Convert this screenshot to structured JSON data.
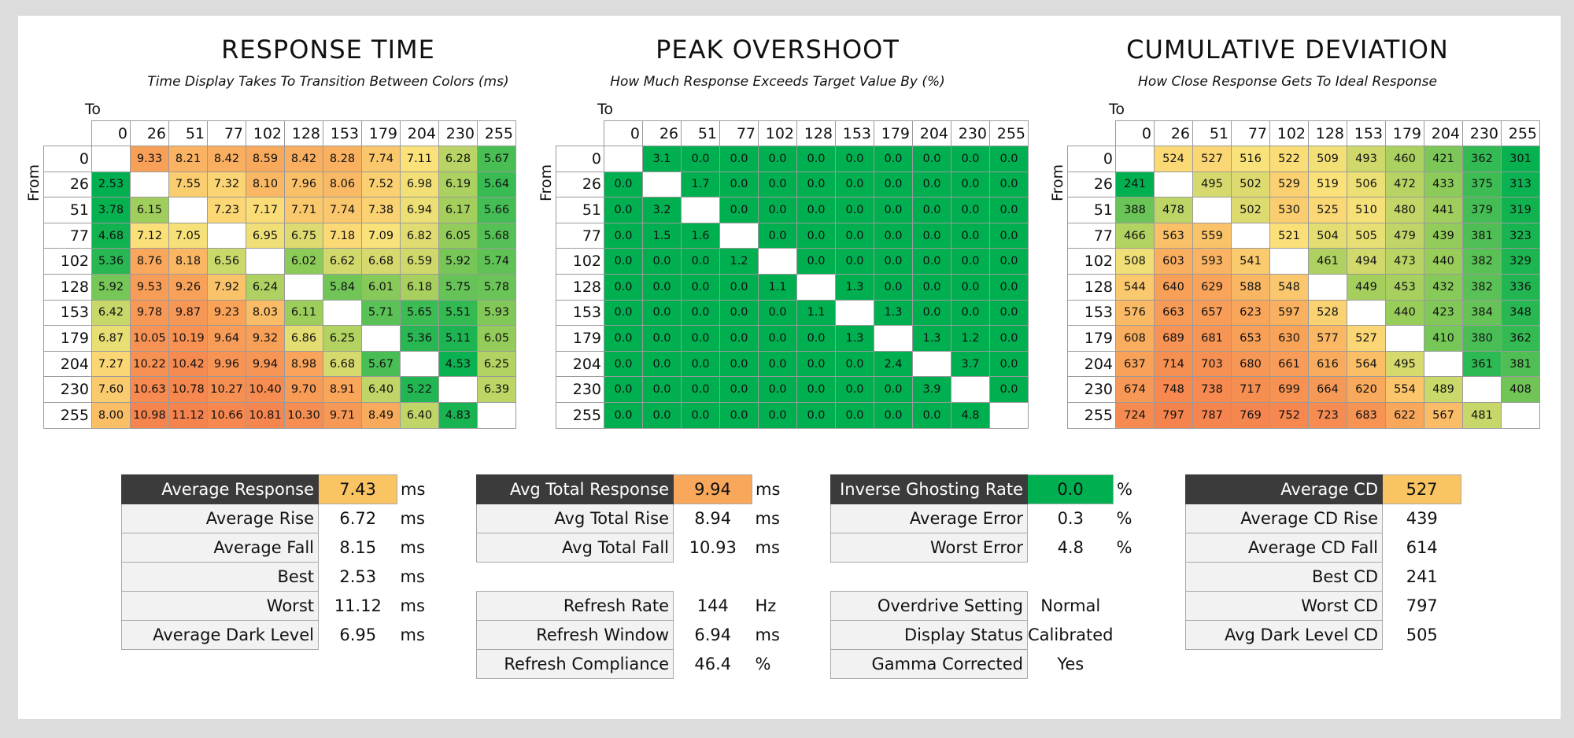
{
  "chart_data": [
    {
      "type": "heatmap",
      "title": "RESPONSE TIME",
      "subtitle": "Time Display Takes To Transition Between Colors (ms)",
      "xlabel": "To",
      "ylabel": "From",
      "x": [
        "0",
        "26",
        "51",
        "77",
        "102",
        "128",
        "153",
        "179",
        "204",
        "230",
        "255"
      ],
      "y": [
        "0",
        "26",
        "51",
        "77",
        "102",
        "128",
        "153",
        "179",
        "204",
        "230",
        "255"
      ],
      "values": [
        [
          null,
          "9.33",
          "8.21",
          "8.42",
          "8.59",
          "8.42",
          "8.28",
          "7.74",
          "7.11",
          "6.28",
          "5.67"
        ],
        [
          "2.53",
          null,
          "7.55",
          "7.32",
          "8.10",
          "7.96",
          "8.06",
          "7.52",
          "6.98",
          "6.19",
          "5.64"
        ],
        [
          "3.78",
          "6.15",
          null,
          "7.23",
          "7.17",
          "7.71",
          "7.74",
          "7.38",
          "6.94",
          "6.17",
          "5.66"
        ],
        [
          "4.68",
          "7.12",
          "7.05",
          null,
          "6.95",
          "6.75",
          "7.18",
          "7.09",
          "6.82",
          "6.05",
          "5.68"
        ],
        [
          "5.36",
          "8.76",
          "8.18",
          "6.56",
          null,
          "6.02",
          "6.62",
          "6.68",
          "6.59",
          "5.92",
          "5.74"
        ],
        [
          "5.92",
          "9.53",
          "9.26",
          "7.92",
          "6.24",
          null,
          "5.84",
          "6.01",
          "6.18",
          "5.75",
          "5.78"
        ],
        [
          "6.42",
          "9.78",
          "9.87",
          "9.23",
          "8.03",
          "6.11",
          null,
          "5.71",
          "5.65",
          "5.51",
          "5.93"
        ],
        [
          "6.87",
          "10.05",
          "10.19",
          "9.64",
          "9.32",
          "6.86",
          "6.25",
          null,
          "5.36",
          "5.11",
          "6.05"
        ],
        [
          "7.27",
          "10.22",
          "10.42",
          "9.96",
          "9.94",
          "8.98",
          "6.68",
          "5.67",
          null,
          "4.53",
          "6.25"
        ],
        [
          "7.60",
          "10.63",
          "10.78",
          "10.27",
          "10.40",
          "9.70",
          "8.91",
          "6.40",
          "5.22",
          null,
          "6.39"
        ],
        [
          "8.00",
          "10.98",
          "11.12",
          "10.66",
          "10.81",
          "10.30",
          "9.71",
          "8.49",
          "6.40",
          "4.83",
          null
        ]
      ],
      "color_scale": "min-green-yellow-orange-max"
    },
    {
      "type": "heatmap",
      "title": "PEAK OVERSHOOT",
      "subtitle": "How Much Response Exceeds Target Value By (%)",
      "xlabel": "To",
      "ylabel": "From",
      "x": [
        "0",
        "26",
        "51",
        "77",
        "102",
        "128",
        "153",
        "179",
        "204",
        "230",
        "255"
      ],
      "y": [
        "0",
        "26",
        "51",
        "77",
        "102",
        "128",
        "153",
        "179",
        "204",
        "230",
        "255"
      ],
      "values": [
        [
          null,
          "3.1",
          "0.0",
          "0.0",
          "0.0",
          "0.0",
          "0.0",
          "0.0",
          "0.0",
          "0.0",
          "0.0"
        ],
        [
          "0.0",
          null,
          "1.7",
          "0.0",
          "0.0",
          "0.0",
          "0.0",
          "0.0",
          "0.0",
          "0.0",
          "0.0"
        ],
        [
          "0.0",
          "3.2",
          null,
          "0.0",
          "0.0",
          "0.0",
          "0.0",
          "0.0",
          "0.0",
          "0.0",
          "0.0"
        ],
        [
          "0.0",
          "1.5",
          "1.6",
          null,
          "0.0",
          "0.0",
          "0.0",
          "0.0",
          "0.0",
          "0.0",
          "0.0"
        ],
        [
          "0.0",
          "0.0",
          "0.0",
          "1.2",
          null,
          "0.0",
          "0.0",
          "0.0",
          "0.0",
          "0.0",
          "0.0"
        ],
        [
          "0.0",
          "0.0",
          "0.0",
          "0.0",
          "1.1",
          null,
          "1.3",
          "0.0",
          "0.0",
          "0.0",
          "0.0"
        ],
        [
          "0.0",
          "0.0",
          "0.0",
          "0.0",
          "0.0",
          "1.1",
          null,
          "1.3",
          "0.0",
          "0.0",
          "0.0"
        ],
        [
          "0.0",
          "0.0",
          "0.0",
          "0.0",
          "0.0",
          "0.0",
          "1.3",
          null,
          "1.3",
          "1.2",
          "0.0"
        ],
        [
          "0.0",
          "0.0",
          "0.0",
          "0.0",
          "0.0",
          "0.0",
          "0.0",
          "2.4",
          null,
          "3.7",
          "0.0"
        ],
        [
          "0.0",
          "0.0",
          "0.0",
          "0.0",
          "0.0",
          "0.0",
          "0.0",
          "0.0",
          "3.9",
          null,
          "0.0"
        ],
        [
          "0.0",
          "0.0",
          "0.0",
          "0.0",
          "0.0",
          "0.0",
          "0.0",
          "0.0",
          "0.0",
          "4.8",
          null
        ]
      ],
      "color_scale": "all-green"
    },
    {
      "type": "heatmap",
      "title": "CUMULATIVE DEVIATION",
      "subtitle": "How Close Response Gets To Ideal Response",
      "xlabel": "To",
      "ylabel": "From",
      "x": [
        "0",
        "26",
        "51",
        "77",
        "102",
        "128",
        "153",
        "179",
        "204",
        "230",
        "255"
      ],
      "y": [
        "0",
        "26",
        "51",
        "77",
        "102",
        "128",
        "153",
        "179",
        "204",
        "230",
        "255"
      ],
      "values": [
        [
          null,
          "524",
          "527",
          "516",
          "522",
          "509",
          "493",
          "460",
          "421",
          "362",
          "301"
        ],
        [
          "241",
          null,
          "495",
          "502",
          "529",
          "519",
          "506",
          "472",
          "433",
          "375",
          "313"
        ],
        [
          "388",
          "478",
          null,
          "502",
          "530",
          "525",
          "510",
          "480",
          "441",
          "379",
          "319"
        ],
        [
          "466",
          "563",
          "559",
          null,
          "521",
          "504",
          "505",
          "479",
          "439",
          "381",
          "323"
        ],
        [
          "508",
          "603",
          "593",
          "541",
          null,
          "461",
          "494",
          "473",
          "440",
          "382",
          "329"
        ],
        [
          "544",
          "640",
          "629",
          "588",
          "548",
          null,
          "449",
          "453",
          "432",
          "382",
          "336"
        ],
        [
          "576",
          "663",
          "657",
          "623",
          "597",
          "528",
          null,
          "440",
          "423",
          "384",
          "348"
        ],
        [
          "608",
          "689",
          "681",
          "653",
          "630",
          "577",
          "527",
          null,
          "410",
          "380",
          "362"
        ],
        [
          "637",
          "714",
          "703",
          "680",
          "661",
          "616",
          "564",
          "495",
          null,
          "361",
          "381"
        ],
        [
          "674",
          "748",
          "738",
          "717",
          "699",
          "664",
          "620",
          "554",
          "489",
          null,
          "408"
        ],
        [
          "724",
          "797",
          "787",
          "769",
          "752",
          "723",
          "683",
          "622",
          "567",
          "481",
          null
        ]
      ],
      "color_scale": "min-green-yellow-orange-max"
    }
  ],
  "stats": {
    "response": [
      {
        "label": "Average Response",
        "value": "7.43",
        "unit": "ms",
        "highlight": true,
        "color": "#fbc463"
      },
      {
        "label": "Average Rise",
        "value": "6.72",
        "unit": "ms"
      },
      {
        "label": "Average Fall",
        "value": "8.15",
        "unit": "ms"
      },
      {
        "label": "Best",
        "value": "2.53",
        "unit": "ms"
      },
      {
        "label": "Worst",
        "value": "11.12",
        "unit": "ms"
      },
      {
        "label": "Average Dark Level",
        "value": "6.95",
        "unit": "ms"
      }
    ],
    "total": [
      {
        "label": "Avg Total Response",
        "value": "9.94",
        "unit": "ms",
        "highlight": true,
        "color": "#f9a75b"
      },
      {
        "label": "Avg Total Rise",
        "value": "8.94",
        "unit": "ms"
      },
      {
        "label": "Avg Total Fall",
        "value": "10.93",
        "unit": "ms"
      },
      null,
      {
        "label": "Refresh Rate",
        "value": "144",
        "unit": "Hz"
      },
      {
        "label": "Refresh Window",
        "value": "6.94",
        "unit": "ms"
      },
      {
        "label": "Refresh Compliance",
        "value": "46.4",
        "unit": "%"
      }
    ],
    "overshoot": [
      {
        "label": "Inverse Ghosting Rate",
        "value": "0.0",
        "unit": "%",
        "highlight": true,
        "color": "#00b050"
      },
      {
        "label": "Average Error",
        "value": "0.3",
        "unit": "%"
      },
      {
        "label": "Worst Error",
        "value": "4.8",
        "unit": "%"
      },
      null,
      {
        "label": "Overdrive Setting",
        "value": "Normal",
        "unit": ""
      },
      {
        "label": "Display Status",
        "value": "Calibrated",
        "unit": ""
      },
      {
        "label": "Gamma Corrected",
        "value": "Yes",
        "unit": ""
      }
    ],
    "cd": [
      {
        "label": "Average CD",
        "value": "527",
        "unit": "",
        "highlight": true,
        "color": "#fbc463"
      },
      {
        "label": "Average CD Rise",
        "value": "439",
        "unit": ""
      },
      {
        "label": "Average CD Fall",
        "value": "614",
        "unit": ""
      },
      {
        "label": "Best CD",
        "value": "241",
        "unit": ""
      },
      {
        "label": "Worst CD",
        "value": "797",
        "unit": ""
      },
      {
        "label": "Avg Dark Level CD",
        "value": "505",
        "unit": ""
      }
    ]
  },
  "colors": {
    "green": "#00b050",
    "light_green": "#9acd5a",
    "yellow": "#fbe27a",
    "orange": "#f9a75b",
    "red_orange": "#f5834e",
    "highlight_label_bg": "#3b3b3b"
  }
}
